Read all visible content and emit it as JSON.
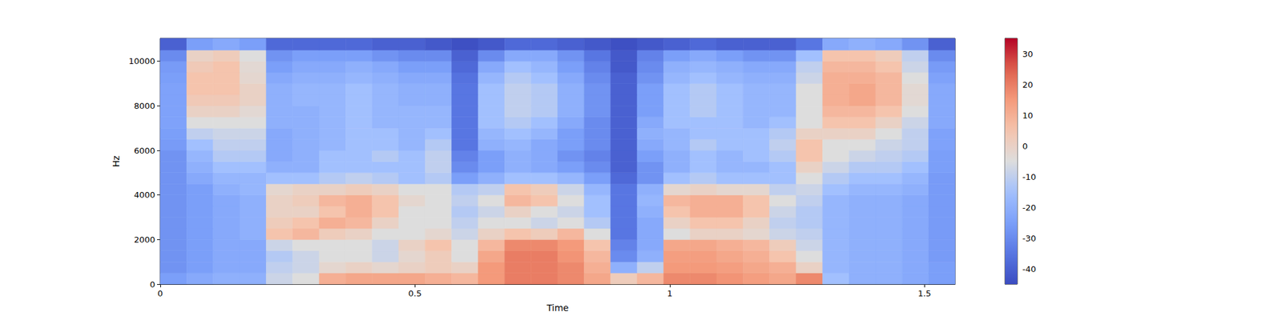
{
  "chart_data": {
    "type": "heatmap",
    "x_label": "Time",
    "y_label": "Hz",
    "x_bins": [
      0,
      0.052,
      0.104,
      0.156,
      0.208,
      0.26,
      0.312,
      0.364,
      0.416,
      0.468,
      0.52,
      0.572,
      0.624,
      0.676,
      0.728,
      0.78,
      0.832,
      0.884,
      0.936,
      0.988,
      1.04,
      1.092,
      1.144,
      1.196,
      1.248,
      1.3,
      1.352,
      1.404,
      1.456,
      1.508,
      1.56
    ],
    "y_bins": [
      0,
      500,
      1000,
      1500,
      2000,
      2500,
      3000,
      3500,
      4000,
      4500,
      5000,
      5500,
      6000,
      6500,
      7000,
      7500,
      8000,
      8500,
      9000,
      9500,
      10000,
      10500,
      11025
    ],
    "values": [
      [
        -25,
        -22,
        -20,
        -20,
        -8,
        -5,
        10,
        12,
        12,
        12,
        10,
        8,
        15,
        20,
        20,
        18,
        12,
        2,
        8,
        18,
        18,
        16,
        14,
        12,
        18,
        -15,
        -20,
        -20,
        -22,
        -25
      ],
      [
        -28,
        -25,
        -22,
        -22,
        -10,
        -8,
        -2,
        0,
        -2,
        0,
        2,
        0,
        15,
        20,
        20,
        18,
        10,
        -20,
        -10,
        15,
        15,
        14,
        12,
        10,
        0,
        -18,
        -20,
        -20,
        -22,
        -25
      ],
      [
        -28,
        -25,
        -22,
        -22,
        -12,
        -8,
        -5,
        -5,
        -8,
        -2,
        2,
        -5,
        12,
        20,
        20,
        16,
        8,
        -30,
        -20,
        14,
        14,
        12,
        10,
        5,
        -5,
        -18,
        -20,
        -20,
        -22,
        -26
      ],
      [
        -28,
        -25,
        -22,
        -22,
        -8,
        -5,
        -5,
        -5,
        -8,
        0,
        5,
        -5,
        8,
        18,
        18,
        15,
        5,
        -32,
        -22,
        12,
        12,
        10,
        8,
        2,
        -8,
        -18,
        -20,
        -20,
        -22,
        -26
      ],
      [
        -28,
        -25,
        -22,
        -20,
        5,
        8,
        2,
        0,
        -5,
        -5,
        -2,
        -8,
        0,
        5,
        2,
        8,
        -5,
        -35,
        -22,
        -5,
        0,
        0,
        -2,
        -8,
        -10,
        -18,
        -20,
        -20,
        -22,
        -26
      ],
      [
        -28,
        -25,
        -22,
        -20,
        2,
        5,
        10,
        8,
        0,
        -5,
        -5,
        -10,
        -5,
        -5,
        -8,
        -5,
        -12,
        -35,
        -22,
        0,
        5,
        5,
        0,
        -10,
        -12,
        -18,
        -20,
        -20,
        -22,
        -26
      ],
      [
        -28,
        -25,
        -22,
        -20,
        0,
        0,
        5,
        10,
        5,
        -5,
        -5,
        -12,
        -8,
        0,
        -5,
        -8,
        -15,
        -35,
        -20,
        5,
        10,
        10,
        5,
        -8,
        -12,
        -18,
        -20,
        -20,
        -22,
        -26
      ],
      [
        -28,
        -25,
        -22,
        -20,
        0,
        2,
        8,
        10,
        5,
        -2,
        -5,
        -10,
        -5,
        8,
        5,
        -5,
        -15,
        -35,
        -18,
        8,
        10,
        10,
        5,
        -5,
        -10,
        -18,
        -20,
        -20,
        -22,
        -26
      ],
      [
        -28,
        -25,
        -20,
        -18,
        -2,
        0,
        0,
        2,
        0,
        -5,
        -5,
        -12,
        -10,
        5,
        2,
        -8,
        -18,
        -35,
        -20,
        -2,
        0,
        -2,
        -2,
        -10,
        -8,
        -15,
        -18,
        -18,
        -20,
        -26
      ],
      [
        -28,
        -22,
        -18,
        -18,
        -15,
        -15,
        -12,
        -10,
        -12,
        -15,
        -12,
        -25,
        -20,
        -15,
        -15,
        -18,
        -25,
        -38,
        -28,
        -15,
        -12,
        -15,
        -15,
        -15,
        -5,
        -12,
        -15,
        -15,
        -18,
        -26
      ],
      [
        -28,
        -20,
        -15,
        -15,
        -20,
        -20,
        -15,
        -15,
        -15,
        -15,
        -10,
        -30,
        -25,
        -20,
        -22,
        -25,
        -30,
        -40,
        -28,
        -20,
        -15,
        -18,
        -18,
        -15,
        0,
        -8,
        -12,
        -12,
        -15,
        -25
      ],
      [
        -28,
        -18,
        -12,
        -12,
        -22,
        -20,
        -15,
        -15,
        -12,
        -15,
        -10,
        -32,
        -25,
        -20,
        -22,
        -28,
        -32,
        -40,
        -25,
        -20,
        -15,
        -18,
        -15,
        -12,
        5,
        -5,
        -8,
        -10,
        -12,
        -25
      ],
      [
        -26,
        -15,
        -10,
        -10,
        -22,
        -20,
        -18,
        -15,
        -15,
        -18,
        -12,
        -35,
        -20,
        -18,
        -22,
        -25,
        -30,
        -40,
        -22,
        -18,
        -12,
        -15,
        -15,
        -10,
        5,
        -5,
        -5,
        -8,
        -10,
        -24
      ],
      [
        -25,
        -10,
        -8,
        -8,
        -22,
        -20,
        -18,
        -15,
        -15,
        -18,
        -15,
        -35,
        -18,
        -15,
        -18,
        -25,
        -30,
        -40,
        -20,
        -18,
        -15,
        -15,
        -15,
        -12,
        0,
        0,
        0,
        -5,
        -10,
        -24
      ],
      [
        -24,
        -5,
        -5,
        -5,
        -20,
        -20,
        -18,
        -15,
        -18,
        -18,
        -18,
        -35,
        -15,
        -12,
        -15,
        -22,
        -30,
        -40,
        -22,
        -15,
        -15,
        -15,
        -18,
        -15,
        -5,
        5,
        5,
        0,
        -8,
        -22
      ],
      [
        -24,
        0,
        0,
        -3,
        -20,
        -20,
        -18,
        -15,
        -18,
        -18,
        -18,
        -35,
        -15,
        -10,
        -12,
        -20,
        -28,
        -40,
        -25,
        -15,
        -12,
        -15,
        -18,
        -18,
        -5,
        8,
        8,
        5,
        -5,
        -22
      ],
      [
        -24,
        3,
        3,
        0,
        -20,
        -18,
        -18,
        -15,
        -18,
        -20,
        -20,
        -35,
        -15,
        -10,
        -12,
        -20,
        -28,
        -40,
        -25,
        -15,
        -12,
        -15,
        -18,
        -18,
        -5,
        10,
        12,
        8,
        -3,
        -22
      ],
      [
        -24,
        5,
        5,
        0,
        -20,
        -18,
        -18,
        -15,
        -18,
        -20,
        -20,
        -35,
        -15,
        -10,
        -12,
        -20,
        -28,
        -40,
        -25,
        -15,
        -12,
        -15,
        -18,
        -18,
        -5,
        10,
        12,
        8,
        -3,
        -22
      ],
      [
        -25,
        5,
        5,
        -2,
        -22,
        -20,
        -20,
        -18,
        -20,
        -22,
        -22,
        -36,
        -18,
        -12,
        -15,
        -22,
        -30,
        -40,
        -28,
        -18,
        -15,
        -18,
        -20,
        -20,
        -8,
        10,
        10,
        8,
        -5,
        -24
      ],
      [
        -26,
        3,
        5,
        -3,
        -25,
        -22,
        -22,
        -20,
        -22,
        -25,
        -25,
        -38,
        -22,
        -15,
        -18,
        -25,
        -32,
        -42,
        -30,
        -20,
        -18,
        -20,
        -22,
        -22,
        -10,
        8,
        8,
        5,
        -8,
        -26
      ],
      [
        -30,
        0,
        2,
        -5,
        -28,
        -25,
        -25,
        -25,
        -28,
        -30,
        -30,
        -40,
        -30,
        -22,
        -22,
        -28,
        -35,
        -42,
        -32,
        -25,
        -22,
        -25,
        -28,
        -28,
        -15,
        5,
        5,
        2,
        -10,
        -30
      ],
      [
        -40,
        -25,
        -22,
        -25,
        -38,
        -38,
        -38,
        -38,
        -40,
        -40,
        -42,
        -44,
        -42,
        -38,
        -38,
        -40,
        -42,
        -44,
        -42,
        -40,
        -38,
        -40,
        -40,
        -40,
        -35,
        -22,
        -20,
        -22,
        -28,
        -40
      ]
    ],
    "xlim": [
      0,
      1.56
    ],
    "ylim": [
      0,
      11025
    ],
    "xticks": [
      0,
      0.5,
      1,
      1.5
    ],
    "yticks": [
      0,
      2000,
      4000,
      6000,
      8000,
      10000
    ],
    "colorbar_range": [
      -45,
      35
    ],
    "colorbar_ticks": [
      -40,
      -30,
      -20,
      -10,
      0,
      10,
      20,
      30
    ]
  }
}
